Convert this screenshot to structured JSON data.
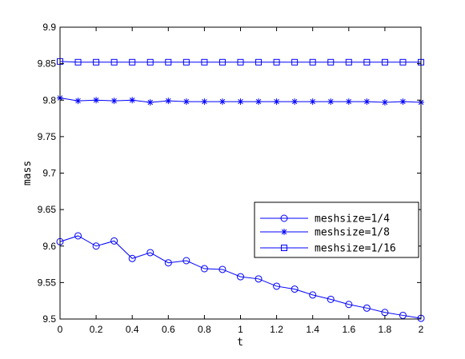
{
  "chart_data": {
    "type": "line",
    "title": "",
    "xlabel": "t",
    "ylabel": "mass",
    "xlim": [
      0,
      2
    ],
    "ylim": [
      9.5,
      9.9
    ],
    "xticks": [
      0,
      0.2,
      0.4,
      0.6,
      0.8,
      1,
      1.2,
      1.4,
      1.6,
      1.8,
      2
    ],
    "yticks": [
      9.5,
      9.55,
      9.6,
      9.65,
      9.7,
      9.75,
      9.8,
      9.85,
      9.9
    ],
    "xtick_labels": [
      "0",
      "0.2",
      "0.4",
      "0.6",
      "0.8",
      "1",
      "1.2",
      "1.4",
      "1.6",
      "1.8",
      "2"
    ],
    "ytick_labels": [
      "9.5",
      "9.55",
      "9.6",
      "9.65",
      "9.7",
      "9.75",
      "9.8",
      "9.85",
      "9.9"
    ],
    "grid": false,
    "legend_position": "right",
    "line_color": "#0000ff",
    "x": [
      0,
      0.1,
      0.2,
      0.3,
      0.4,
      0.5,
      0.6,
      0.7,
      0.8,
      0.9,
      1.0,
      1.1,
      1.2,
      1.3,
      1.4,
      1.5,
      1.6,
      1.7,
      1.8,
      1.9,
      2.0
    ],
    "series": [
      {
        "name": "meshsize=1/4",
        "marker": "circle",
        "values": [
          9.606,
          9.614,
          9.6,
          9.607,
          9.583,
          9.591,
          9.577,
          9.58,
          9.569,
          9.568,
          9.558,
          9.555,
          9.545,
          9.541,
          9.533,
          9.527,
          9.52,
          9.515,
          9.509,
          9.505,
          9.501
        ]
      },
      {
        "name": "meshsize=1/8",
        "marker": "star",
        "values": [
          9.803,
          9.799,
          9.8,
          9.799,
          9.8,
          9.797,
          9.799,
          9.798,
          9.798,
          9.798,
          9.798,
          9.798,
          9.798,
          9.798,
          9.798,
          9.798,
          9.798,
          9.798,
          9.797,
          9.798,
          9.797
        ]
      },
      {
        "name": "meshsize=1/16",
        "marker": "square",
        "values": [
          9.853,
          9.852,
          9.852,
          9.852,
          9.852,
          9.852,
          9.852,
          9.852,
          9.852,
          9.852,
          9.852,
          9.852,
          9.852,
          9.852,
          9.852,
          9.852,
          9.852,
          9.852,
          9.852,
          9.852,
          9.852
        ]
      }
    ]
  }
}
